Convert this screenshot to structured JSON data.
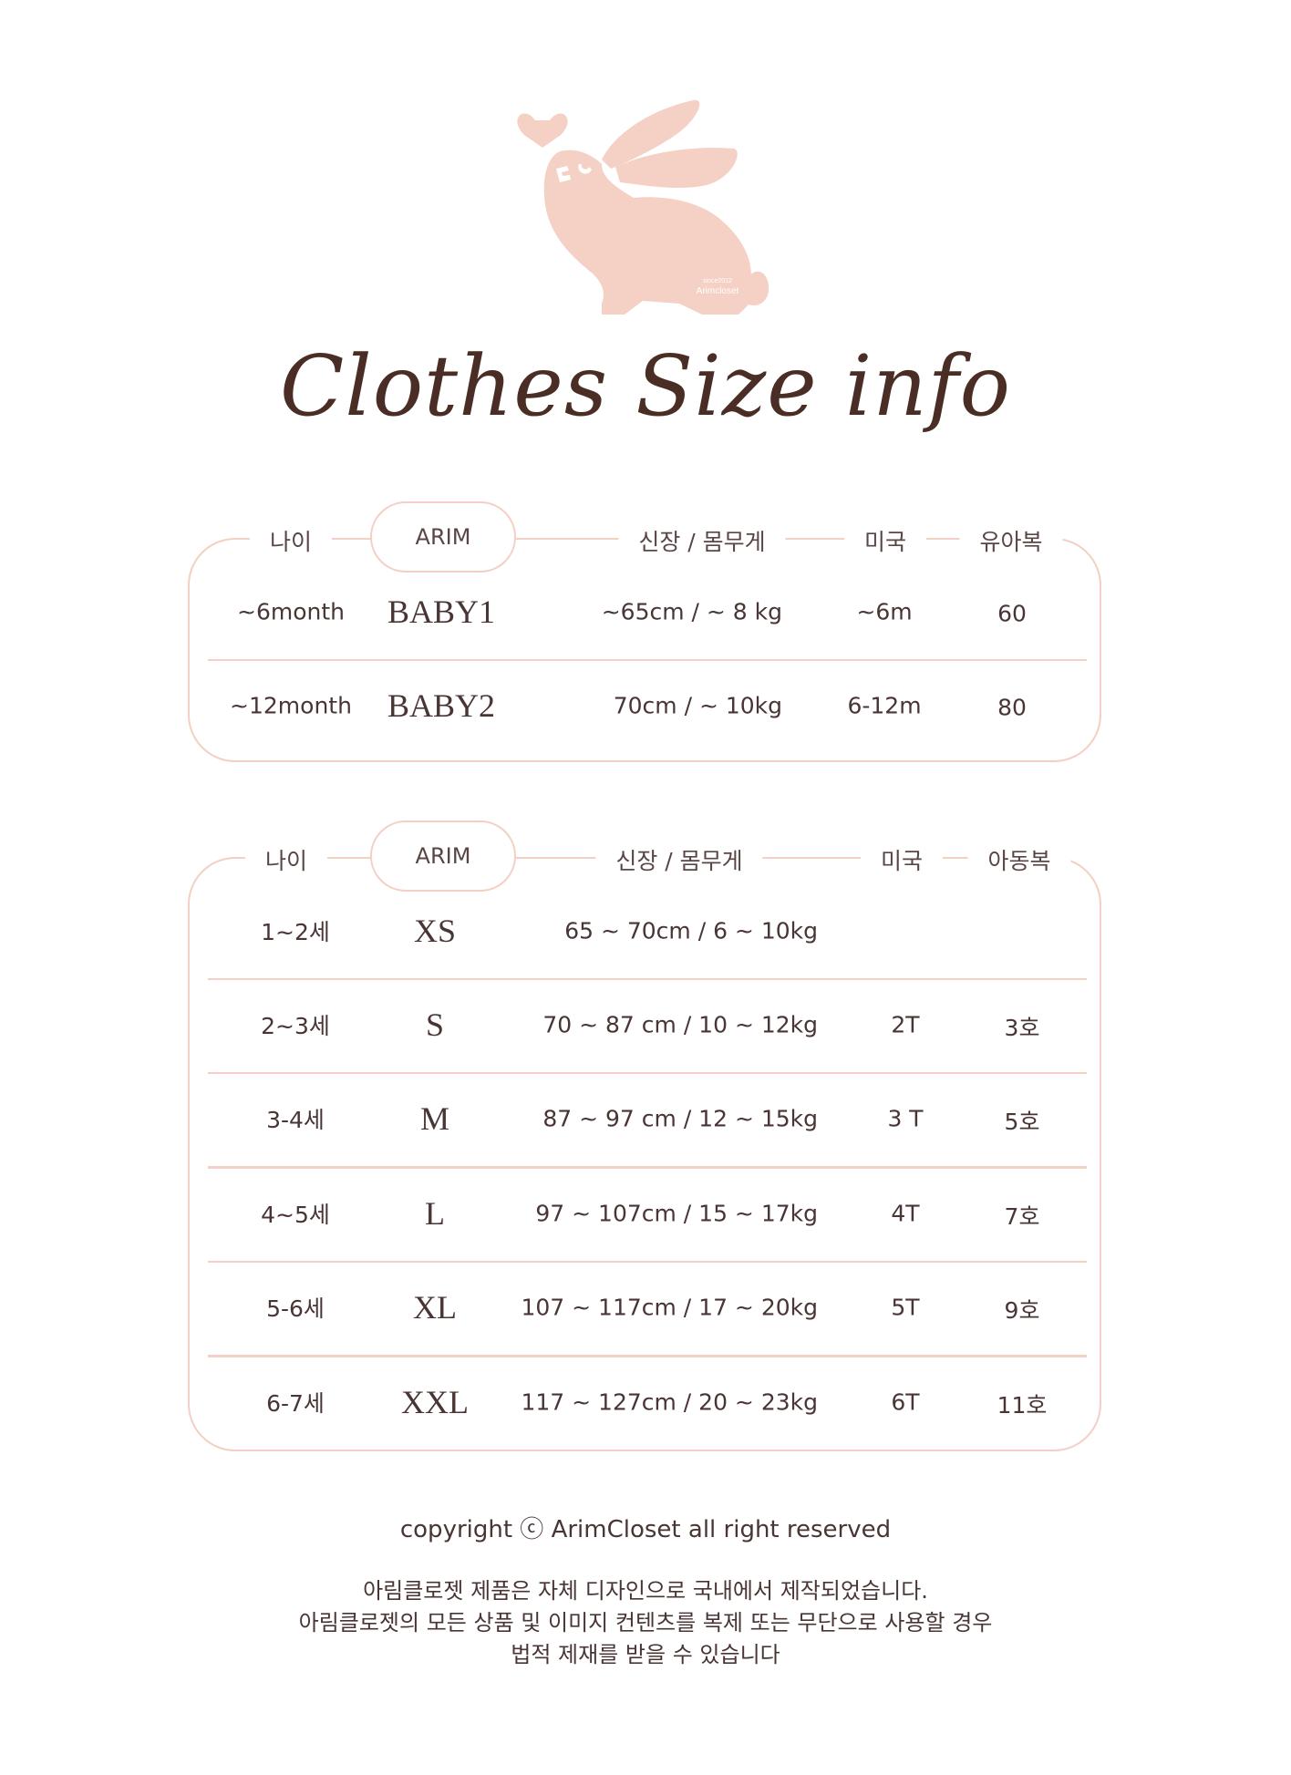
{
  "logo": {
    "since": "since2012",
    "brand": "Arimcloset",
    "color": "#f5d0c4"
  },
  "title": "Clothes Size info",
  "colors": {
    "border": "#f3cfc4",
    "text": "#4a3535"
  },
  "baby_table": {
    "headers": [
      "나이",
      "ARIM",
      "신장 / 몸무게",
      "미국",
      "유아복"
    ],
    "rows": [
      {
        "age": "~6month",
        "size": "BABY1",
        "measure": "~65cm  /  ~ 8 kg",
        "us": "~6m",
        "kr": "60"
      },
      {
        "age": "~12month",
        "size": "BABY2",
        "measure": "70cm  /  ~ 10kg",
        "us": "6-12m",
        "kr": "80"
      }
    ]
  },
  "kids_table": {
    "headers": [
      "나이",
      "ARIM",
      "신장 / 몸무게",
      "미국",
      "아동복"
    ],
    "rows": [
      {
        "age": "1~2세",
        "size": "XS",
        "measure": "65 ~ 70cm  /  6 ~ 10kg",
        "us": "",
        "kr": ""
      },
      {
        "age": "2~3세",
        "size": "S",
        "measure": "70 ~ 87 cm /  10 ~ 12kg",
        "us": "2T",
        "kr": "3호"
      },
      {
        "age": "3-4세",
        "size": "M",
        "measure": "87 ~ 97 cm /  12 ~ 15kg",
        "us": "3 T",
        "kr": "5호"
      },
      {
        "age": "4~5세",
        "size": "L",
        "measure": "97 ~ 107cm /  15 ~ 17kg",
        "us": "4T",
        "kr": "7호"
      },
      {
        "age": "5-6세",
        "size": "XL",
        "measure": "107 ~ 117cm /  17 ~ 20kg",
        "us": "5T",
        "kr": "9호"
      },
      {
        "age": "6-7세",
        "size": "XXL",
        "measure": "117 ~ 127cm / 20 ~ 23kg",
        "us": "6T",
        "kr": "11호"
      }
    ]
  },
  "footer": {
    "copyright": "copyright ⓒ ArimCloset all right reserved",
    "notice": [
      "아림클로젯 제품은 자체 디자인으로 국내에서 제작되었습니다.",
      "아림클로젯의 모든 상품 및 이미지 컨텐츠를 복제 또는 무단으로 사용할 경우",
      "법적 제재를 받을 수 있습니다"
    ]
  }
}
